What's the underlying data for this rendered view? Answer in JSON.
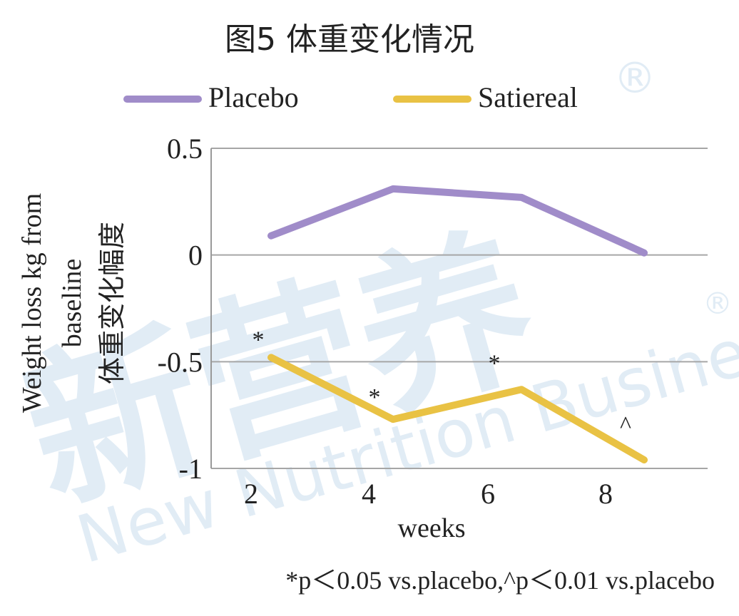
{
  "chart_data": {
    "type": "line",
    "title": "图5  体重变化情况",
    "xlabel": "weeks",
    "ylabel_lines": [
      "Weight loss kg from",
      "baseline",
      "体重变化幅度"
    ],
    "x": [
      2,
      4,
      6,
      8
    ],
    "x_ticks": [
      "2",
      "4",
      "6",
      "8"
    ],
    "ylim": [
      -1,
      0.5
    ],
    "y_ticks": [
      "0.5",
      "0",
      "-0.5",
      "-1"
    ],
    "grid": true,
    "legend_position": "top",
    "series": [
      {
        "name": "Placebo",
        "color": "#a08cc9",
        "values": [
          0.09,
          0.31,
          0.27,
          0.01
        ]
      },
      {
        "name": "Satiereal",
        "color": "#e9c244",
        "values": [
          -0.48,
          -0.77,
          -0.63,
          -0.96
        ]
      }
    ],
    "annotations": [
      {
        "text": "*",
        "x": 2,
        "y": -0.38
      },
      {
        "text": "*",
        "x": 4,
        "y": -0.65
      },
      {
        "text": "*",
        "x": 6,
        "y": -0.49
      },
      {
        "text": "^",
        "x": 8,
        "y": -0.78
      }
    ],
    "footnote": "*p＜0.05 vs.placebo,^p＜0.01 vs.placebo"
  },
  "watermark": {
    "cn": "新营养",
    "en": "New Nutrition Business",
    "mark": "®"
  }
}
